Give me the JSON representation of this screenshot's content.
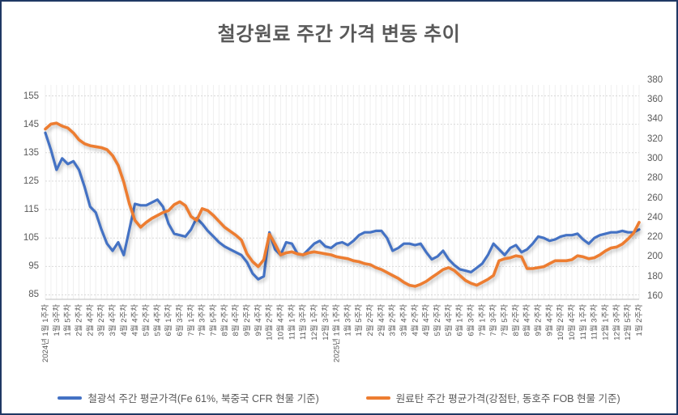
{
  "window": {
    "border_color": "#1F3864",
    "background": "#FFFFFF"
  },
  "title": "철강원료 주간 가격 변동 추이",
  "legend": [
    {
      "key": "iron-ore",
      "label": "철광석 주간 평균가격(Fe 61%, 북중국 CFR 현물 기준)",
      "color": "#4472C4"
    },
    {
      "key": "coking-coal",
      "label": "원료탄 주간 평균가격(강점탄, 동호주 FOB 현물 기준)",
      "color": "#ED7D31"
    }
  ],
  "chart_data": {
    "type": "line",
    "title": "철강원료 주간 가격 변동 추이",
    "grid": true,
    "legend_position": "bottom",
    "left_axis": {
      "min": 85,
      "max": 155,
      "step": 10,
      "ticks": [
        155,
        145,
        135,
        125,
        115,
        105,
        95,
        85
      ]
    },
    "right_axis": {
      "min": 160,
      "max": 380,
      "step": 20,
      "ticks": [
        380,
        360,
        340,
        320,
        300,
        280,
        260,
        240,
        220,
        200,
        180,
        160
      ]
    },
    "label_every": 2,
    "x_tick_labels": [
      "2024년 1월 1주차",
      "1월 3주차",
      "1월 5주차",
      "2월 2주차",
      "2월 4주차",
      "3월 2주차",
      "3월 4주차",
      "4월 2주차",
      "4월 4주차",
      "5월 2주차",
      "5월 4주차",
      "6월 1주차",
      "6월 3주차",
      "7월 1주차",
      "7월 3주차",
      "7월 5주차",
      "8월 2주차",
      "8월 4주차",
      "9월 2주차",
      "9월 4주차",
      "10월 2주차",
      "10월 4주차",
      "11월 1주차",
      "11월 3주차",
      "12월 1주차",
      "12월 3주차",
      "2025년 1월 1주차",
      "1월 3주차",
      "1월 5주차",
      "2월 2주차",
      "2월 4주차",
      "3월 2주차",
      "3월 4주차",
      "4월 2주차",
      "4월 4주차",
      "5월 2주차",
      "5월 4주차",
      "6월 1주차",
      "6월 3주차",
      "7월 1주차",
      "7월 3주차",
      "7월 5주차",
      "8월 2주차",
      "8월 4주차",
      "9월 2주차",
      "9월 4주차",
      "10월 2주차",
      "10월 4주차",
      "11월 1주차",
      "11월 3주차",
      "12월 1주차",
      "12월 3주차",
      "12월 5주차",
      "1월 2주차"
    ],
    "series": [
      {
        "name": "철광석 주간 평균가격(Fe 61%, 북중국 CFR 현물 기준)",
        "key": "iron-ore",
        "axis": "left",
        "color": "#4472C4",
        "values": [
          142,
          136,
          129,
          133,
          131,
          132,
          129,
          123,
          116,
          114,
          108,
          103,
          100.5,
          103.5,
          99,
          108,
          117,
          116.5,
          116.5,
          117.5,
          118.5,
          116,
          110,
          106.5,
          106,
          105.5,
          108,
          112,
          110,
          107.5,
          105.5,
          103.5,
          102,
          101,
          100,
          99,
          96.5,
          92.5,
          90.5,
          91.5,
          107,
          101,
          99,
          103.5,
          103,
          99.5,
          99,
          101,
          103,
          104,
          102,
          101.5,
          103,
          103.5,
          102.5,
          104,
          106,
          107,
          107,
          107.5,
          107.5,
          105,
          100.5,
          101.5,
          103,
          103,
          102.5,
          103,
          100,
          97.5,
          98.5,
          100.5,
          97.5,
          95.5,
          94,
          93.5,
          93,
          94.5,
          96,
          99,
          103,
          101,
          99,
          101.5,
          102.5,
          100,
          101,
          103,
          105.5,
          105,
          104,
          104.5,
          105.5,
          106,
          106,
          106.5,
          104.5,
          103,
          105,
          106,
          106.5,
          107,
          107,
          107.5,
          107,
          107,
          108
        ]
      },
      {
        "name": "원료탄 주간 평균가격(강점탄, 동호주 FOB 현물 기준)",
        "key": "coking-coal",
        "axis": "right",
        "color": "#ED7D31",
        "values": [
          330,
          335,
          336,
          333,
          331,
          326,
          319,
          315,
          313,
          312,
          311,
          309,
          303,
          293,
          276,
          254,
          237,
          230,
          235,
          239,
          242,
          245,
          247,
          253,
          256,
          252,
          241,
          237,
          249,
          247,
          242,
          236,
          230,
          226,
          222,
          217,
          203,
          195,
          190,
          197,
          223,
          213,
          202,
          204,
          205,
          203,
          202,
          204,
          205,
          204,
          203,
          202,
          200,
          199,
          198,
          196,
          195,
          193,
          192,
          189,
          187,
          184,
          181,
          178,
          174,
          171,
          170,
          172,
          175,
          179,
          183,
          187,
          189,
          186,
          181,
          176,
          173,
          171,
          174,
          177,
          181,
          196,
          198,
          199,
          201,
          200,
          188,
          188,
          189,
          190,
          193,
          196,
          196,
          196,
          197,
          201,
          200,
          198,
          199,
          202,
          206,
          209,
          210,
          213,
          218,
          224,
          235
        ]
      }
    ]
  },
  "colors": {
    "axis_text": "#595959",
    "gridline": "#D9D9D9",
    "minor_gridline": "#EFEFEF",
    "axis_line": "#BFBFBF"
  }
}
